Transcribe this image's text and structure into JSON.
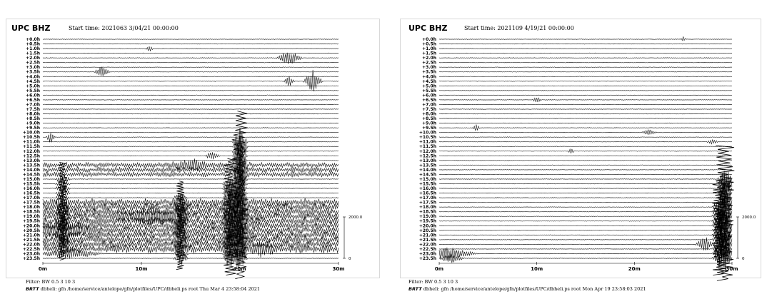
{
  "chart_data": [
    {
      "type": "line",
      "title": "UPC BHZ",
      "start_time": "Start time: 2021063  3/04/21 00:00:00",
      "row_labels": [
        "+0.0h",
        "+0.5h",
        "+1.0h",
        "+1.5h",
        "+2.0h",
        "+2.5h",
        "+3.0h",
        "+3.5h",
        "+4.0h",
        "+4.5h",
        "+5.0h",
        "+5.5h",
        "+6.0h",
        "+6.5h",
        "+7.0h",
        "+7.5h",
        "+8.0h",
        "+8.5h",
        "+9.0h",
        "+9.5h",
        "+10.0h",
        "+10.5h",
        "+11.0h",
        "+11.5h",
        "+12.0h",
        "+12.5h",
        "+13.0h",
        "+13.5h",
        "+14.0h",
        "+14.5h",
        "+15.0h",
        "+15.5h",
        "+16.0h",
        "+16.5h",
        "+17.0h",
        "+17.5h",
        "+18.0h",
        "+18.5h",
        "+19.0h",
        "+19.5h",
        "+20.0h",
        "+20.5h",
        "+21.0h",
        "+21.5h",
        "+22.0h",
        "+22.5h",
        "+23.0h",
        "+23.5h"
      ],
      "x_ticks": [
        "0m",
        "10m",
        "20m",
        "30m"
      ],
      "xlim": [
        0,
        30
      ],
      "scale_labels": [
        "2000.0",
        "0"
      ],
      "events": [
        {
          "row": 2,
          "minute": 10.8,
          "amp": 0.8,
          "dur": 0.4
        },
        {
          "row": 4,
          "minute": 25.0,
          "amp": 1.6,
          "dur": 1.4
        },
        {
          "row": 7,
          "minute": 6.0,
          "amp": 1.5,
          "dur": 0.8
        },
        {
          "row": 9,
          "minute": 25.0,
          "amp": 1.2,
          "dur": 0.6
        },
        {
          "row": 9,
          "minute": 27.4,
          "amp": 2.6,
          "dur": 1.0
        },
        {
          "row": 21,
          "minute": 0.8,
          "amp": 1.4,
          "dur": 0.5
        },
        {
          "row": 25,
          "minute": 17.2,
          "amp": 1.1,
          "dur": 0.8
        },
        {
          "row": 27,
          "minute": 15.0,
          "amp": 1.0,
          "dur": 2.5
        },
        {
          "row": 38,
          "minute": 11.0,
          "amp": 1.6,
          "dur": 4.0
        },
        {
          "row": 41,
          "minute": 2.5,
          "amp": 1.5,
          "dur": 3.0
        },
        {
          "row": 45,
          "minute": 22.0,
          "amp": 1.0,
          "dur": 2.0
        },
        {
          "row": 46,
          "minute": 2.8,
          "amp": 1.3,
          "dur": 3.5
        }
      ],
      "noisy_bands": [
        {
          "rows": [
            27,
            29
          ],
          "amp": 0.9
        },
        {
          "rows": [
            35,
            45
          ],
          "amp": 1.3
        }
      ],
      "spikes": [
        {
          "minute": 20.0,
          "row_from": 22,
          "row_to": 47,
          "amp": 2.2
        },
        {
          "minute": 19.0,
          "row_from": 31,
          "row_to": 47,
          "amp": 1.8
        },
        {
          "minute": 2.0,
          "row_from": 30,
          "row_to": 45,
          "amp": 1.2
        },
        {
          "minute": 14.0,
          "row_from": 34,
          "row_to": 47,
          "amp": 1.2
        }
      ],
      "filter": "Filter: BW 0.5 3 10 3",
      "footer_brand": "BRTT",
      "footer_text": "dbheli: gfn /home/service/antelope/gfn/plotfiles/UPC/dbheli.ps root Thu Mar  4 23:58:04 2021"
    },
    {
      "type": "line",
      "title": "UPC BHZ",
      "start_time": "Start time: 2021109  4/19/21 00:00:00",
      "row_labels": [
        "+0.0h",
        "+0.5h",
        "+1.0h",
        "+1.5h",
        "+2.0h",
        "+2.5h",
        "+3.0h",
        "+3.5h",
        "+4.0h",
        "+4.5h",
        "+5.0h",
        "+5.5h",
        "+6.0h",
        "+6.5h",
        "+7.0h",
        "+7.5h",
        "+8.0h",
        "+8.5h",
        "+9.0h",
        "+9.5h",
        "+10.0h",
        "+10.5h",
        "+11.0h",
        "+11.5h",
        "+12.0h",
        "+12.5h",
        "+13.0h",
        "+13.5h",
        "+14.0h",
        "+14.5h",
        "+15.0h",
        "+15.5h",
        "+16.0h",
        "+16.5h",
        "+17.0h",
        "+17.5h",
        "+18.0h",
        "+18.5h",
        "+19.0h",
        "+19.5h",
        "+20.0h",
        "+20.5h",
        "+21.0h",
        "+21.5h",
        "+22.0h",
        "+22.5h",
        "+23.0h",
        "+23.5h"
      ],
      "x_ticks": [
        "0m",
        "10m",
        "20m",
        "30m"
      ],
      "xlim": [
        0,
        30
      ],
      "scale_labels": [
        "2000.0",
        "0"
      ],
      "events": [
        {
          "row": 0,
          "minute": 25.0,
          "amp": 0.6,
          "dur": 0.3
        },
        {
          "row": 13,
          "minute": 10.0,
          "amp": 0.7,
          "dur": 0.5
        },
        {
          "row": 19,
          "minute": 3.8,
          "amp": 0.8,
          "dur": 0.4
        },
        {
          "row": 20,
          "minute": 21.5,
          "amp": 0.7,
          "dur": 0.8
        },
        {
          "row": 24,
          "minute": 13.5,
          "amp": 0.8,
          "dur": 0.3
        },
        {
          "row": 22,
          "minute": 28.0,
          "amp": 0.6,
          "dur": 0.6
        },
        {
          "row": 44,
          "minute": 27.2,
          "amp": 1.8,
          "dur": 1.0
        },
        {
          "row": 46,
          "minute": 1.0,
          "amp": 1.4,
          "dur": 3.0
        },
        {
          "row": 47,
          "minute": 1.2,
          "amp": 1.0,
          "dur": 1.5
        }
      ],
      "noisy_bands": [],
      "spikes": [
        {
          "minute": 29.3,
          "row_from": 30,
          "row_to": 47,
          "amp": 2.4
        },
        {
          "minute": 28.7,
          "row_from": 36,
          "row_to": 47,
          "amp": 1.8
        }
      ],
      "filter": "Filter: BW 0.5 3 10 3",
      "footer_brand": "BRTT",
      "footer_text": "dbheli: gfn /home/service/antelope/gfn/plotfiles/UPC/dbheli.ps root Mon Apr 19 23:58:03 2021"
    }
  ]
}
